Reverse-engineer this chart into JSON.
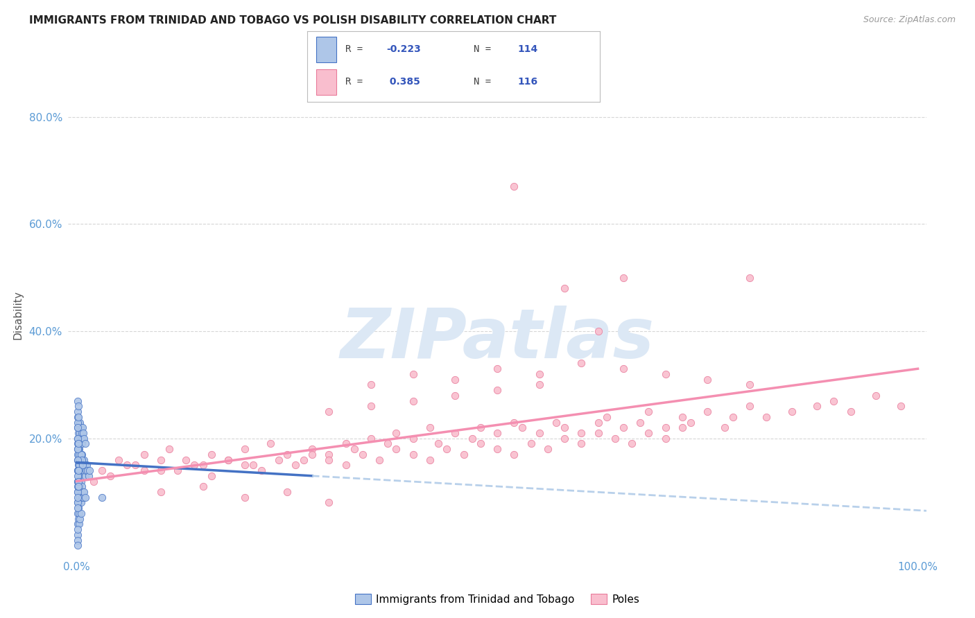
{
  "title": "IMMIGRANTS FROM TRINIDAD AND TOBAGO VS POLISH DISABILITY CORRELATION CHART",
  "source": "Source: ZipAtlas.com",
  "ylabel": "Disability",
  "legend_label_1": "Immigrants from Trinidad and Tobago",
  "legend_label_2": "Poles",
  "r1": -0.223,
  "n1": 114,
  "r2": 0.385,
  "n2": 116,
  "color_blue": "#aec6e8",
  "color_pink": "#f9bece",
  "edge_blue": "#4472c4",
  "edge_pink": "#e87a9a",
  "line_blue_color": "#4472c4",
  "line_pink_color": "#f48fb1",
  "line_dashed_color": "#b8d0ea",
  "background": "#ffffff",
  "grid_color": "#cccccc",
  "title_color": "#222222",
  "source_color": "#999999",
  "axis_color": "#5b9bd5",
  "watermark_color": "#dce8f5",
  "blue_x": [
    0.001,
    0.001,
    0.001,
    0.001,
    0.002,
    0.002,
    0.002,
    0.002,
    0.003,
    0.003,
    0.003,
    0.003,
    0.004,
    0.004,
    0.004,
    0.005,
    0.005,
    0.005,
    0.006,
    0.006,
    0.006,
    0.007,
    0.007,
    0.008,
    0.008,
    0.009,
    0.009,
    0.01,
    0.01,
    0.011,
    0.012,
    0.013,
    0.014,
    0.015,
    0.001,
    0.001,
    0.001,
    0.002,
    0.002,
    0.002,
    0.003,
    0.003,
    0.004,
    0.004,
    0.005,
    0.005,
    0.006,
    0.006,
    0.007,
    0.007,
    0.008,
    0.009,
    0.01,
    0.001,
    0.001,
    0.002,
    0.002,
    0.003,
    0.003,
    0.004,
    0.004,
    0.005,
    0.005,
    0.006,
    0.006,
    0.007,
    0.008,
    0.009,
    0.01,
    0.001,
    0.001,
    0.002,
    0.002,
    0.003,
    0.003,
    0.004,
    0.005,
    0.006,
    0.007,
    0.001,
    0.001,
    0.002,
    0.002,
    0.003,
    0.003,
    0.004,
    0.005,
    0.001,
    0.001,
    0.002,
    0.001,
    0.001,
    0.001,
    0.002,
    0.002,
    0.001,
    0.001,
    0.001,
    0.001,
    0.002,
    0.001,
    0.001,
    0.001,
    0.001,
    0.03,
    0.001,
    0.001,
    0.001,
    0.001,
    0.001,
    0.001,
    0.002,
    0.002,
    0.002
  ],
  "blue_y": [
    0.14,
    0.16,
    0.18,
    0.12,
    0.15,
    0.17,
    0.13,
    0.19,
    0.14,
    0.16,
    0.12,
    0.18,
    0.15,
    0.13,
    0.17,
    0.14,
    0.16,
    0.12,
    0.15,
    0.13,
    0.17,
    0.14,
    0.16,
    0.15,
    0.13,
    0.14,
    0.16,
    0.15,
    0.13,
    0.14,
    0.15,
    0.14,
    0.13,
    0.14,
    0.22,
    0.2,
    0.24,
    0.21,
    0.23,
    0.19,
    0.2,
    0.22,
    0.21,
    0.23,
    0.2,
    0.22,
    0.21,
    0.19,
    0.2,
    0.22,
    0.21,
    0.2,
    0.19,
    0.1,
    0.08,
    0.11,
    0.09,
    0.1,
    0.08,
    0.11,
    0.09,
    0.1,
    0.08,
    0.11,
    0.09,
    0.1,
    0.09,
    0.1,
    0.09,
    0.17,
    0.19,
    0.18,
    0.16,
    0.17,
    0.15,
    0.16,
    0.17,
    0.16,
    0.15,
    0.06,
    0.04,
    0.07,
    0.05,
    0.06,
    0.04,
    0.05,
    0.06,
    0.12,
    0.14,
    0.13,
    0.25,
    0.23,
    0.27,
    0.24,
    0.26,
    0.2,
    0.18,
    0.16,
    0.22,
    0.19,
    0.02,
    0.01,
    0.03,
    0.0,
    0.09,
    0.08,
    0.07,
    0.1,
    0.11,
    0.09,
    0.13,
    0.12,
    0.14,
    0.11
  ],
  "pink_x": [
    0.03,
    0.05,
    0.07,
    0.08,
    0.1,
    0.11,
    0.13,
    0.15,
    0.16,
    0.18,
    0.2,
    0.21,
    0.23,
    0.25,
    0.27,
    0.28,
    0.3,
    0.32,
    0.33,
    0.35,
    0.37,
    0.38,
    0.4,
    0.42,
    0.43,
    0.45,
    0.47,
    0.48,
    0.5,
    0.52,
    0.53,
    0.55,
    0.57,
    0.58,
    0.6,
    0.62,
    0.63,
    0.65,
    0.67,
    0.68,
    0.7,
    0.72,
    0.73,
    0.75,
    0.77,
    0.78,
    0.8,
    0.82,
    0.85,
    0.88,
    0.9,
    0.92,
    0.95,
    0.98,
    0.02,
    0.04,
    0.06,
    0.08,
    0.1,
    0.12,
    0.14,
    0.16,
    0.18,
    0.2,
    0.22,
    0.24,
    0.26,
    0.28,
    0.3,
    0.32,
    0.34,
    0.36,
    0.38,
    0.4,
    0.42,
    0.44,
    0.46,
    0.48,
    0.5,
    0.52,
    0.54,
    0.56,
    0.58,
    0.6,
    0.62,
    0.64,
    0.66,
    0.68,
    0.7,
    0.72,
    0.35,
    0.4,
    0.45,
    0.5,
    0.55,
    0.6,
    0.65,
    0.7,
    0.75,
    0.8,
    0.1,
    0.15,
    0.2,
    0.25,
    0.3,
    0.65,
    0.8,
    0.52,
    0.58,
    0.62,
    0.3,
    0.35,
    0.4,
    0.45,
    0.5,
    0.55
  ],
  "pink_y": [
    0.14,
    0.16,
    0.15,
    0.17,
    0.14,
    0.18,
    0.16,
    0.15,
    0.17,
    0.16,
    0.18,
    0.15,
    0.19,
    0.17,
    0.16,
    0.18,
    0.17,
    0.19,
    0.18,
    0.2,
    0.19,
    0.21,
    0.2,
    0.22,
    0.19,
    0.21,
    0.2,
    0.22,
    0.21,
    0.23,
    0.22,
    0.21,
    0.23,
    0.22,
    0.21,
    0.23,
    0.24,
    0.22,
    0.23,
    0.25,
    0.22,
    0.24,
    0.23,
    0.25,
    0.22,
    0.24,
    0.26,
    0.24,
    0.25,
    0.26,
    0.27,
    0.25,
    0.28,
    0.26,
    0.12,
    0.13,
    0.15,
    0.14,
    0.16,
    0.14,
    0.15,
    0.13,
    0.16,
    0.15,
    0.14,
    0.16,
    0.15,
    0.17,
    0.16,
    0.15,
    0.17,
    0.16,
    0.18,
    0.17,
    0.16,
    0.18,
    0.17,
    0.19,
    0.18,
    0.17,
    0.19,
    0.18,
    0.2,
    0.19,
    0.21,
    0.2,
    0.19,
    0.21,
    0.2,
    0.22,
    0.3,
    0.32,
    0.31,
    0.33,
    0.32,
    0.34,
    0.33,
    0.32,
    0.31,
    0.3,
    0.1,
    0.11,
    0.09,
    0.1,
    0.08,
    0.5,
    0.5,
    0.67,
    0.48,
    0.4,
    0.25,
    0.26,
    0.27,
    0.28,
    0.29,
    0.3
  ]
}
